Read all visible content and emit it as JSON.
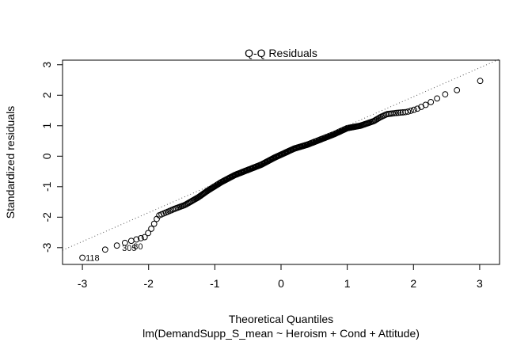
{
  "chart_data": {
    "type": "scatter",
    "title": "Q-Q Residuals",
    "xlabel": "Theoretical Quantiles",
    "ylabel": "Standardized residuals",
    "subtitle": "lm(DemandSupp_S_mean ~ Heroism + Cond + Attitude)",
    "xlim": [
      -3.3,
      3.3
    ],
    "ylim": [
      -3.55,
      3.15
    ],
    "x_ticks": [
      "-3",
      "-2",
      "-1",
      "0",
      "1",
      "2",
      "3"
    ],
    "y_ticks": [
      "-3",
      "-2",
      "-1",
      "0",
      "1",
      "2",
      "3"
    ],
    "reference_line": {
      "intercept": 0.05,
      "slope": 0.95,
      "style": "dotted"
    },
    "point_style": "open-circle",
    "grid": false,
    "curve_knots": [
      [
        -3.0,
        -3.33
      ],
      [
        -2.6,
        -3.02
      ],
      [
        -2.3,
        -2.8
      ],
      [
        -2.05,
        -2.65
      ],
      [
        -1.95,
        -2.35
      ],
      [
        -1.85,
        -1.95
      ],
      [
        -1.6,
        -1.72
      ],
      [
        -1.45,
        -1.6
      ],
      [
        -1.25,
        -1.35
      ],
      [
        -1.1,
        -1.12
      ],
      [
        -0.9,
        -0.85
      ],
      [
        -0.7,
        -0.62
      ],
      [
        -0.5,
        -0.45
      ],
      [
        -0.3,
        -0.28
      ],
      [
        -0.1,
        -0.05
      ],
      [
        0.0,
        0.05
      ],
      [
        0.2,
        0.25
      ],
      [
        0.4,
        0.38
      ],
      [
        0.6,
        0.55
      ],
      [
        0.8,
        0.72
      ],
      [
        1.0,
        0.92
      ],
      [
        1.2,
        1.0
      ],
      [
        1.4,
        1.15
      ],
      [
        1.5,
        1.28
      ],
      [
        1.6,
        1.38
      ],
      [
        1.75,
        1.42
      ],
      [
        1.9,
        1.45
      ],
      [
        2.05,
        1.55
      ],
      [
        2.2,
        1.7
      ],
      [
        2.3,
        1.82
      ],
      [
        2.4,
        1.95
      ],
      [
        2.5,
        2.05
      ],
      [
        2.7,
        2.2
      ],
      [
        3.02,
        2.48
      ]
    ],
    "point_count": 380,
    "labeled_points": [
      {
        "x": -3.0,
        "y": -3.33,
        "label": "118"
      },
      {
        "x": -2.45,
        "y": -3.0,
        "label": "305"
      },
      {
        "x": -2.28,
        "y": -2.95,
        "label": "80"
      }
    ]
  }
}
